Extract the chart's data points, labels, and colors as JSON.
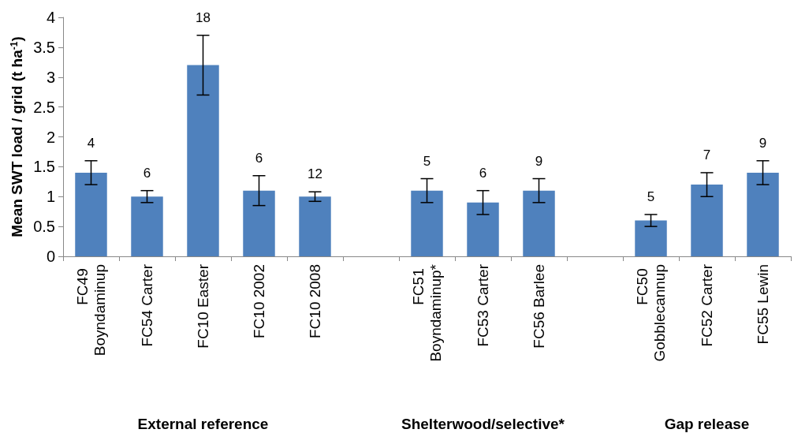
{
  "chart_data": {
    "type": "bar",
    "ylabel": "Mean SWT load / grid (t ha$^{-1}$)",
    "categories": [
      "FC49 Boyndaminup",
      "FC54 Carter",
      "FC10 Easter",
      "FC10 2002",
      "FC10 2008",
      null,
      "FC51 Boyndaminup*",
      "FC53 Carter",
      "FC56 Barlee",
      null,
      "FC50 Gobblecannup",
      "FC52 Carter",
      "FC55 Lewin"
    ],
    "values": [
      1.4,
      1.0,
      3.2,
      1.1,
      1.0,
      null,
      1.1,
      0.9,
      1.1,
      null,
      0.6,
      1.2,
      1.4
    ],
    "errors": [
      0.2,
      0.1,
      0.5,
      0.25,
      0.08,
      null,
      0.2,
      0.2,
      0.2,
      null,
      0.1,
      0.2,
      0.2
    ],
    "color": "#4f81bd",
    "ylim": [
      0,
      4
    ],
    "yticks": [
      0,
      0.5,
      1,
      1.5,
      2,
      2.5,
      3,
      3.5,
      4
    ],
    "grid": false,
    "annotations": [
      {
        "text": "4",
        "x": "FC49 Boyndaminup",
        "y": 1.6
      },
      {
        "text": "6",
        "x": "FC54 Carter",
        "y": 1.1
      },
      {
        "text": "18",
        "x": "FC10 Easter",
        "y": 3.7
      },
      {
        "text": "6",
        "x": "FC10 2002",
        "y": 1.35
      },
      {
        "text": "12",
        "x": "FC10 2008",
        "y": 1.08
      },
      {
        "text": "5",
        "x": "FC51 Boyndaminup*",
        "y": 1.3
      },
      {
        "text": "6",
        "x": "FC53 Carter",
        "y": 1.1
      },
      {
        "text": "9",
        "x": "FC56 Barlee",
        "y": 1.3
      },
      {
        "text": "5",
        "x": "FC50 Gobblecannup",
        "y": 0.7
      },
      {
        "text": "7",
        "x": "FC52 Carter",
        "y": 1.4
      },
      {
        "text": "9",
        "x": "FC55 Lewin",
        "y": 1.6
      },
      "External reference",
      "Shelterwood/selective*",
      "Gap release"
    ]
  }
}
